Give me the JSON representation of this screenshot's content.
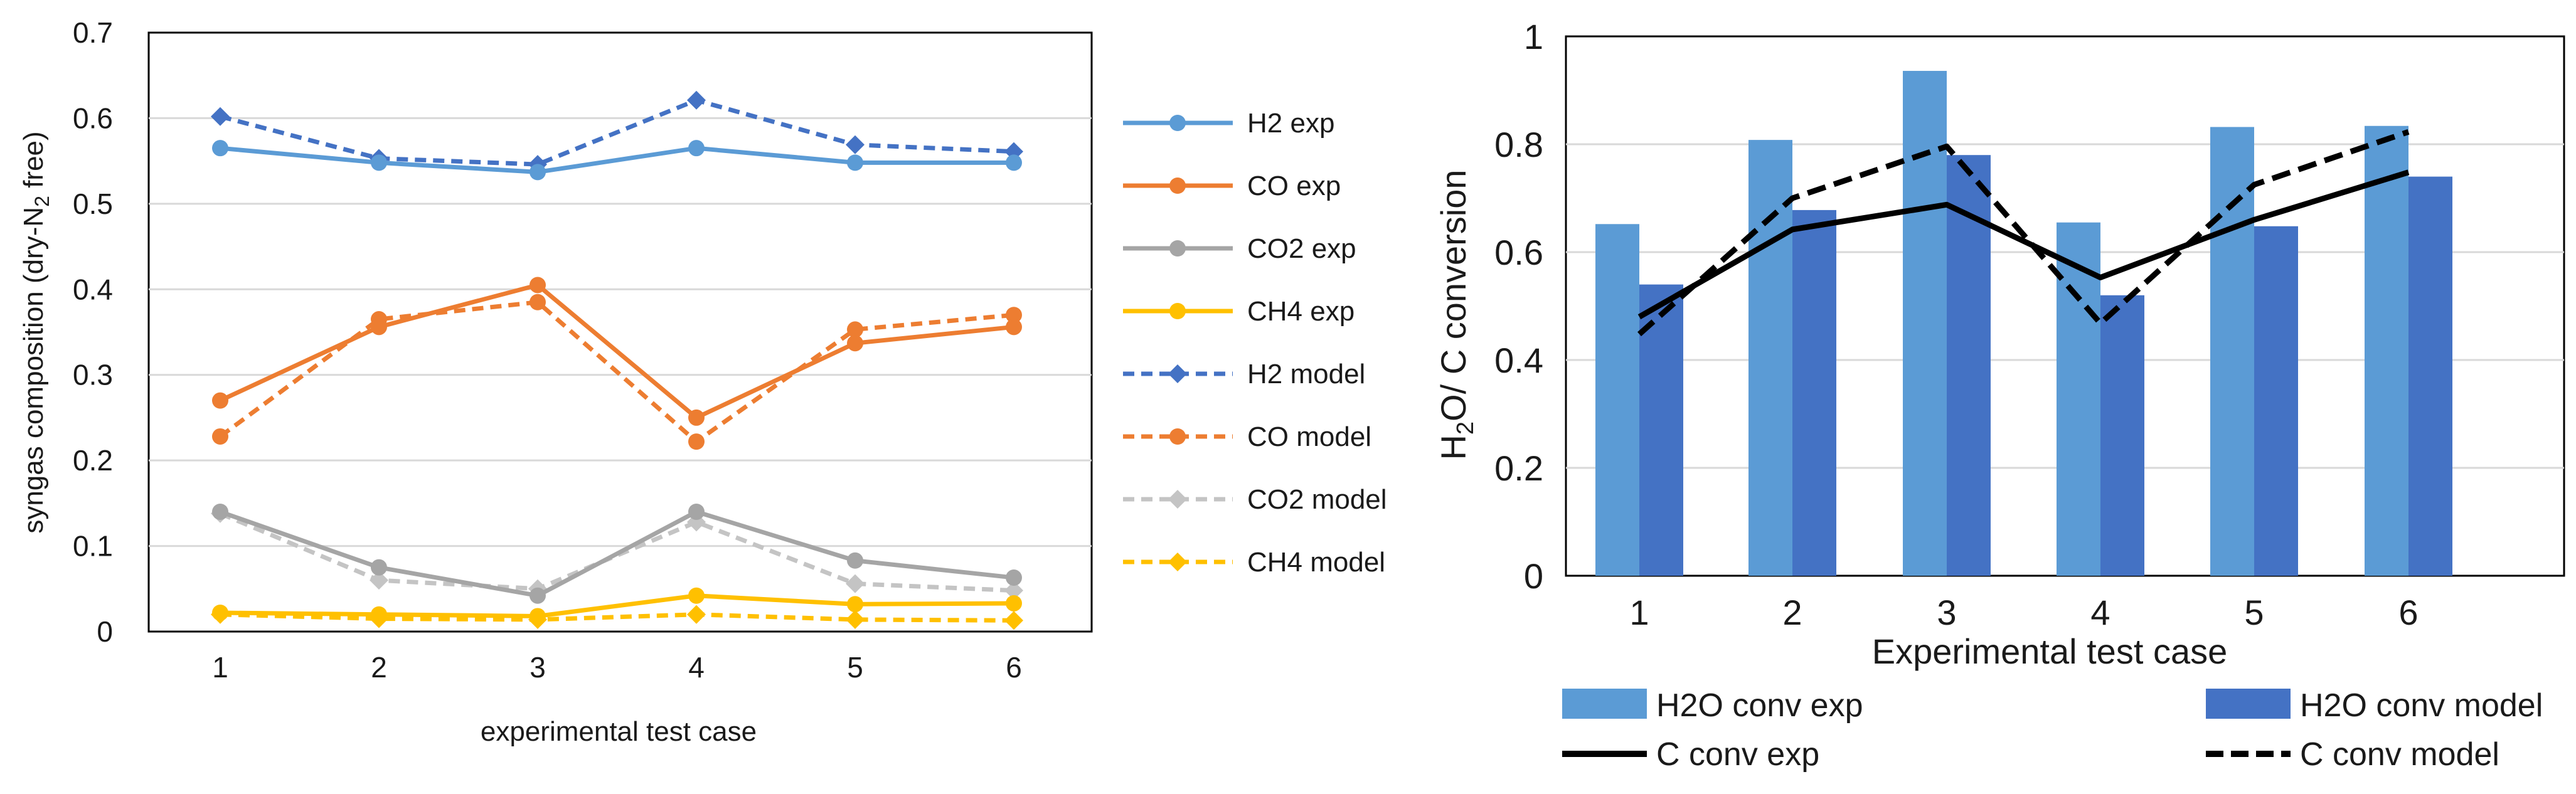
{
  "chart_data": [
    {
      "type": "line",
      "title": "",
      "xlabel": "experimental test case",
      "ylabel": "syngas composition (dry-N",
      "ylabel_sub": "2",
      "ylabel_tail": " free)",
      "categories": [
        "1",
        "2",
        "3",
        "4",
        "5",
        "6"
      ],
      "ylim": [
        0,
        0.7
      ],
      "yticks": [
        "0",
        "0.1",
        "0.2",
        "0.3",
        "0.4",
        "0.5",
        "0.6",
        "0.7"
      ],
      "grid": true,
      "legend_position": "right",
      "series": [
        {
          "name": "H2 exp",
          "color": "#5b9bd5",
          "dash": "solid",
          "marker": "circle",
          "values": [
            0.565,
            0.548,
            0.537,
            0.565,
            0.548,
            0.548
          ]
        },
        {
          "name": "CO exp",
          "color": "#ed7d31",
          "dash": "solid",
          "marker": "circle",
          "values": [
            0.27,
            0.356,
            0.405,
            0.25,
            0.337,
            0.356
          ]
        },
        {
          "name": "CO2 exp",
          "color": "#a5a5a5",
          "dash": "solid",
          "marker": "circle",
          "values": [
            0.14,
            0.075,
            0.042,
            0.14,
            0.083,
            0.063
          ]
        },
        {
          "name": "CH4 exp",
          "color": "#ffc000",
          "dash": "solid",
          "marker": "circle",
          "values": [
            0.022,
            0.02,
            0.018,
            0.042,
            0.032,
            0.033
          ]
        },
        {
          "name": "H2 model",
          "color": "#4472c4",
          "dash": "dashed",
          "marker": "diamond",
          "values": [
            0.602,
            0.553,
            0.546,
            0.621,
            0.569,
            0.561
          ]
        },
        {
          "name": "CO model",
          "color": "#ed7d31",
          "dash": "dashed",
          "marker": "circle",
          "values": [
            0.228,
            0.365,
            0.385,
            0.222,
            0.353,
            0.37
          ]
        },
        {
          "name": "CO2 model",
          "color": "#c4c4c4",
          "dash": "dashed",
          "marker": "diamond",
          "values": [
            0.138,
            0.06,
            0.05,
            0.128,
            0.056,
            0.048
          ]
        },
        {
          "name": "CH4 model",
          "color": "#ffc000",
          "dash": "dashed",
          "marker": "diamond",
          "values": [
            0.02,
            0.015,
            0.014,
            0.02,
            0.014,
            0.013
          ]
        }
      ]
    },
    {
      "type": "bar+line",
      "title": "",
      "xlabel": "Experimental test case",
      "ylabel": "H",
      "ylabel_sub": "2",
      "ylabel_tail": "O/ C conversion",
      "categories": [
        "1",
        "2",
        "3",
        "4",
        "5",
        "6"
      ],
      "ylim": [
        0,
        1
      ],
      "yticks": [
        "0",
        "0.2",
        "0.4",
        "0.6",
        "0.8",
        "1"
      ],
      "grid": true,
      "legend_position": "bottom",
      "bar_series": [
        {
          "name": "H2O conv exp",
          "color": "#5b9bd5",
          "values": [
            0.652,
            0.808,
            0.936,
            0.655,
            0.832,
            0.834
          ]
        },
        {
          "name": "H2O conv model",
          "color": "#4472c4",
          "values": [
            0.54,
            0.678,
            0.78,
            0.52,
            0.648,
            0.74
          ]
        }
      ],
      "line_series": [
        {
          "name": "C conv exp",
          "color": "#000000",
          "dash": "solid",
          "values": [
            0.48,
            0.642,
            0.688,
            0.553,
            0.66,
            0.748
          ]
        },
        {
          "name": "C conv model",
          "color": "#000000",
          "dash": "dashed",
          "values": [
            0.448,
            0.7,
            0.796,
            0.468,
            0.725,
            0.823
          ]
        }
      ]
    }
  ]
}
